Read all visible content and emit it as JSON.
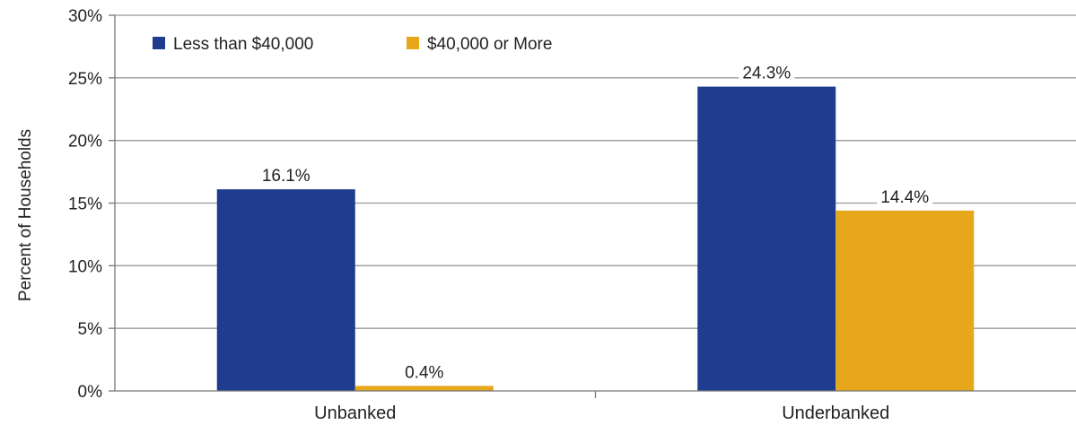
{
  "chart_data": {
    "type": "bar",
    "categories": [
      "Unbanked",
      "Underbanked"
    ],
    "series": [
      {
        "name": "Less than $40,000",
        "values": [
          16.1,
          24.3
        ],
        "color": "#1f3c8f"
      },
      {
        "name": "$40,000 or More",
        "values": [
          0.4,
          14.4
        ],
        "color": "#e6a71a"
      }
    ],
    "data_labels": [
      [
        "16.1%",
        "24.3%"
      ],
      [
        "0.4%",
        "14.4%"
      ]
    ],
    "title": "",
    "xlabel": "",
    "ylabel": "Percent of Households",
    "ylim": [
      0,
      30
    ],
    "yticks": [
      0,
      5,
      10,
      15,
      20,
      25,
      30
    ],
    "ytick_labels": [
      "0%",
      "5%",
      "10%",
      "15%",
      "20%",
      "25%",
      "30%"
    ],
    "grid": true,
    "legend_position": "top-left"
  }
}
